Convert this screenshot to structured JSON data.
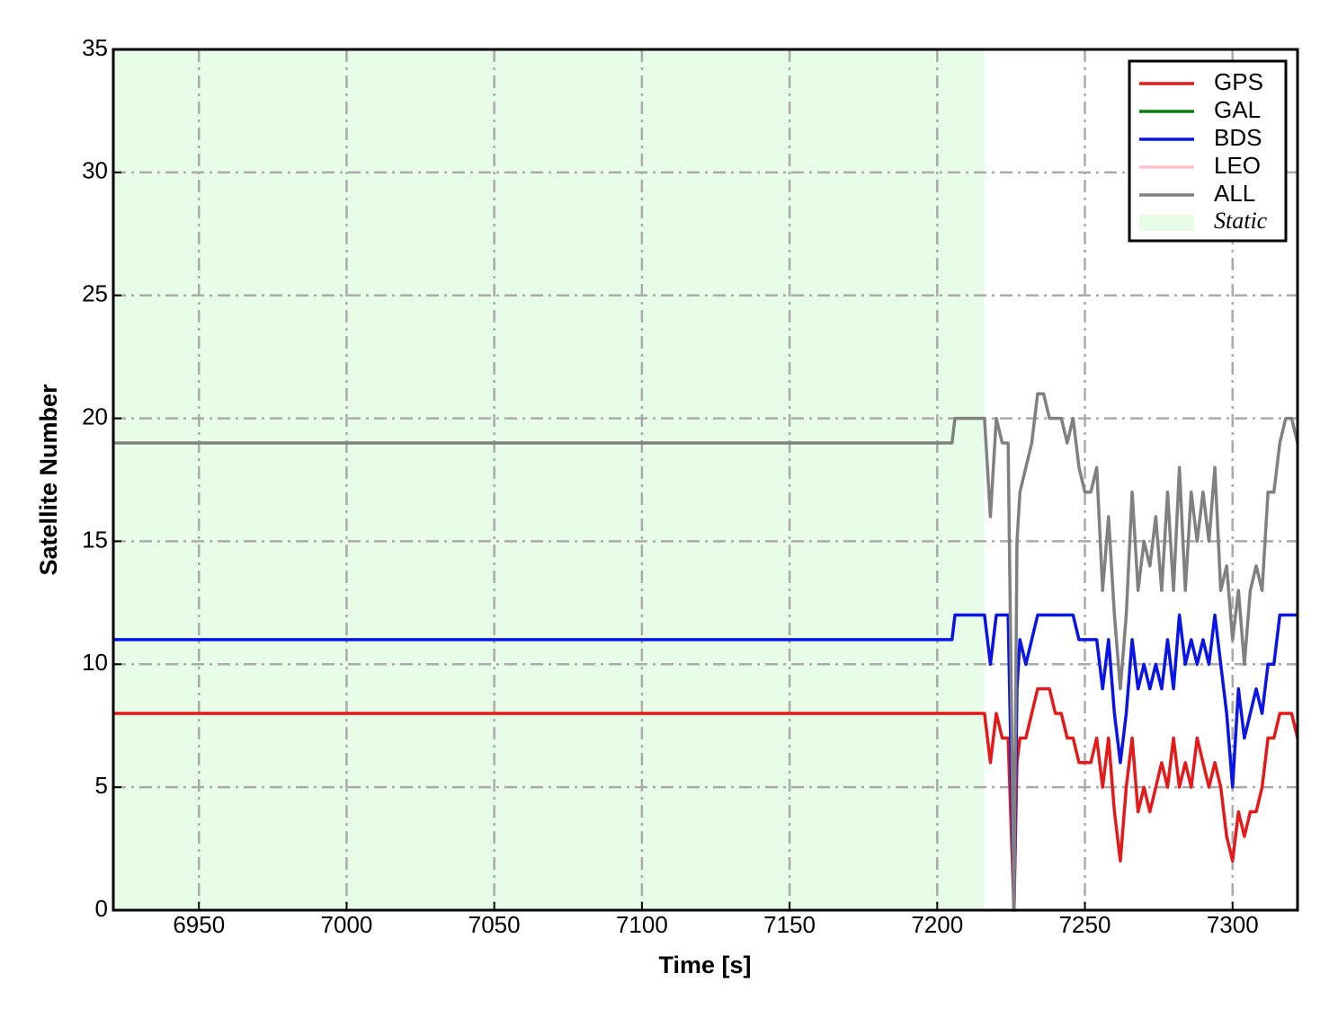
{
  "chart_data": {
    "type": "line",
    "xlabel": "Time [s]",
    "ylabel": "Satellite Number",
    "xlim": [
      6921,
      7322
    ],
    "ylim": [
      0,
      35
    ],
    "xticks": [
      6950,
      7000,
      7050,
      7100,
      7150,
      7200,
      7250,
      7300
    ],
    "yticks": [
      0,
      5,
      10,
      15,
      20,
      25,
      30,
      35
    ],
    "grid": true,
    "legend": "upper right",
    "span": {
      "label": "Static",
      "xrange": [
        6921,
        7216
      ],
      "color": "#e8fde8"
    },
    "x": [
      6921,
      7205,
      7206,
      7208,
      7210,
      7212,
      7214,
      7216,
      7218,
      7220,
      7222,
      7224,
      7226,
      7227,
      7228,
      7230,
      7232,
      7234,
      7236,
      7238,
      7240,
      7242,
      7244,
      7246,
      7248,
      7250,
      7252,
      7254,
      7256,
      7258,
      7260,
      7262,
      7264,
      7266,
      7268,
      7270,
      7272,
      7274,
      7276,
      7278,
      7280,
      7282,
      7284,
      7286,
      7288,
      7290,
      7292,
      7294,
      7296,
      7298,
      7300,
      7302,
      7304,
      7306,
      7308,
      7310,
      7312,
      7314,
      7316,
      7318,
      7320,
      7322
    ],
    "series": [
      {
        "name": "GPS",
        "color": "#e41a1a",
        "values": [
          8,
          8,
          8,
          8,
          8,
          8,
          8,
          8,
          6,
          8,
          7,
          7,
          0,
          6,
          7,
          7,
          8,
          9,
          9,
          9,
          8,
          8,
          7,
          7,
          6,
          6,
          6,
          7,
          5,
          7,
          4,
          2,
          5,
          7,
          4,
          5,
          4,
          5,
          6,
          5,
          7,
          5,
          6,
          5,
          7,
          6,
          5,
          6,
          5,
          3,
          2,
          4,
          3,
          4,
          4,
          5,
          7,
          7,
          8,
          8,
          8,
          7
        ]
      },
      {
        "name": "GAL",
        "color": "#107810",
        "values": [
          null,
          null,
          null,
          null,
          null,
          null,
          null,
          null,
          null,
          null,
          null,
          null,
          null,
          null,
          null,
          null,
          null,
          null,
          null,
          null,
          null,
          null,
          null,
          null,
          null,
          null,
          null,
          null,
          null,
          null,
          null,
          null,
          null,
          null,
          null,
          null,
          null,
          null,
          null,
          null,
          null,
          null,
          null,
          null,
          null,
          null,
          null,
          null,
          null,
          null,
          null,
          null,
          null,
          null,
          null,
          null,
          null,
          null,
          null,
          null,
          null,
          null
        ]
      },
      {
        "name": "BDS",
        "color": "#0a14e6",
        "values": [
          11,
          11,
          12,
          12,
          12,
          12,
          12,
          12,
          10,
          12,
          12,
          12,
          0,
          9,
          11,
          10,
          11,
          12,
          12,
          12,
          12,
          12,
          12,
          12,
          11,
          11,
          11,
          11,
          9,
          11,
          8,
          6,
          8,
          11,
          9,
          10,
          9,
          10,
          9,
          11,
          9,
          12,
          10,
          11,
          10,
          11,
          10,
          12,
          10,
          8,
          5,
          9,
          7,
          8,
          9,
          8,
          10,
          10,
          12,
          12,
          12,
          12
        ]
      },
      {
        "name": "LEO",
        "color": "#ffc0cb",
        "values": [
          null,
          null,
          null,
          null,
          null,
          null,
          null,
          null,
          null,
          null,
          null,
          null,
          null,
          null,
          null,
          null,
          null,
          null,
          null,
          null,
          null,
          null,
          null,
          null,
          null,
          null,
          null,
          null,
          null,
          null,
          null,
          null,
          null,
          null,
          null,
          null,
          null,
          null,
          null,
          null,
          null,
          null,
          null,
          null,
          null,
          null,
          null,
          null,
          null,
          null,
          null,
          null,
          null,
          null,
          null,
          null,
          null,
          null,
          null,
          null,
          null,
          null
        ]
      },
      {
        "name": "ALL",
        "color": "#808080",
        "values": [
          19,
          19,
          20,
          20,
          20,
          20,
          20,
          20,
          16,
          20,
          19,
          19,
          0,
          15,
          17,
          18,
          19,
          21,
          21,
          20,
          20,
          20,
          19,
          20,
          18,
          17,
          17,
          18,
          13,
          16,
          12,
          9,
          12,
          17,
          13,
          15,
          14,
          16,
          13,
          17,
          13,
          18,
          13,
          17,
          15,
          17,
          15,
          18,
          13,
          14,
          11,
          13,
          10,
          13,
          14,
          13,
          17,
          17,
          19,
          20,
          20,
          19
        ]
      }
    ]
  }
}
